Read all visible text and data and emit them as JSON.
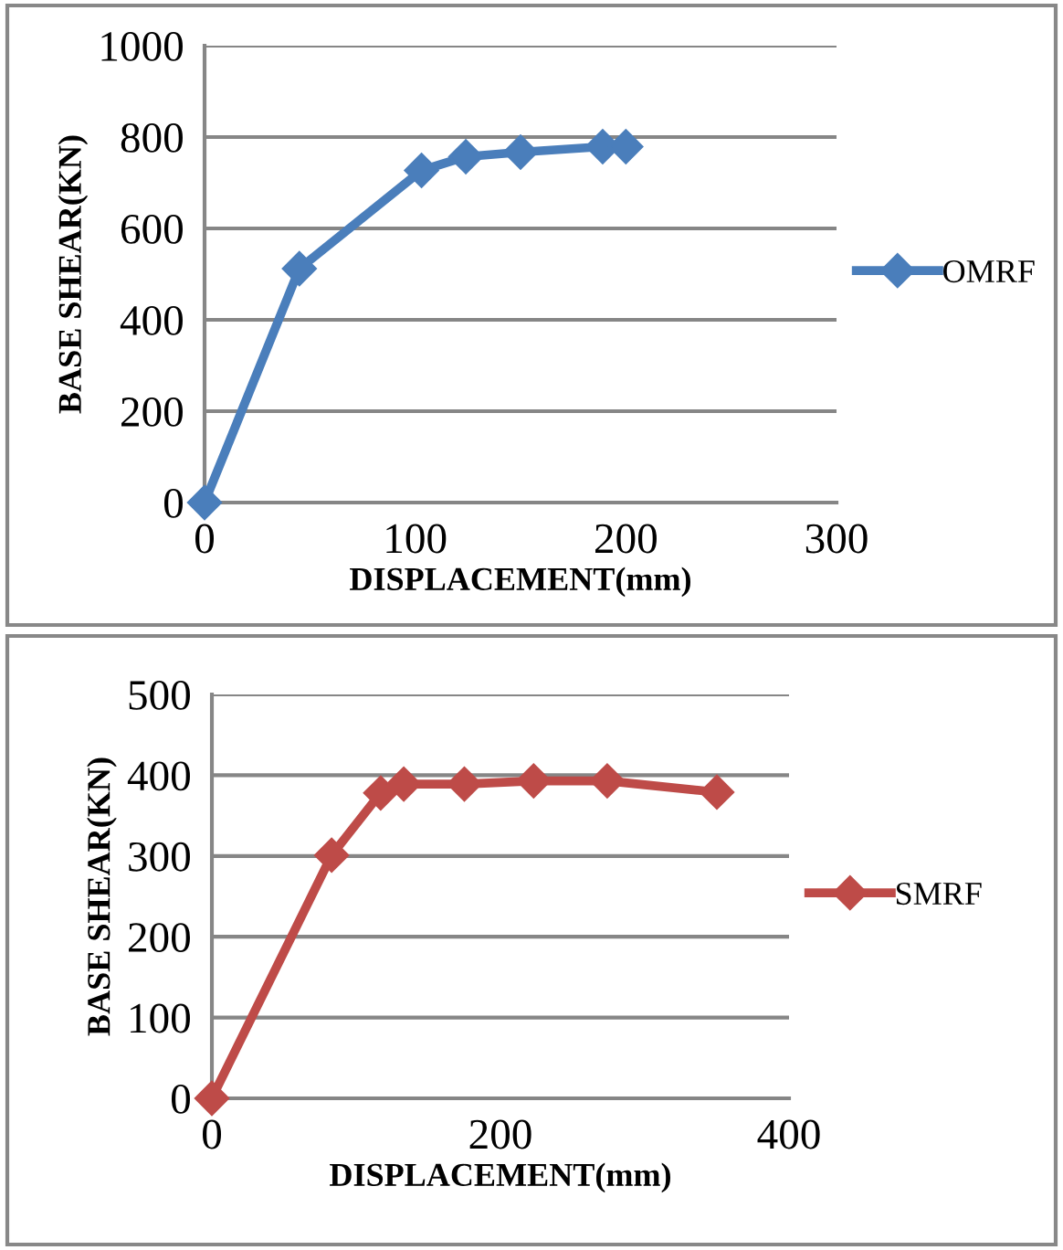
{
  "chart_data": [
    {
      "type": "line",
      "xlabel": "DISPLACEMENT(mm)",
      "ylabel": "BASE SHEAR(KN)",
      "marker": "diamond",
      "line_style": "solid",
      "grid": "y",
      "legend": "right",
      "xlim": [
        0,
        300
      ],
      "xticks": [
        0,
        100,
        200,
        300
      ],
      "ylim": [
        0,
        1000
      ],
      "yticks": [
        0,
        200,
        400,
        600,
        800,
        1000
      ],
      "series": [
        {
          "name": "OMRF",
          "color": "#4a7ebb",
          "x": [
            0,
            45,
            103,
            124,
            150,
            189,
            200
          ],
          "values": [
            0,
            512,
            727,
            757,
            767,
            779,
            779
          ]
        }
      ]
    },
    {
      "type": "line",
      "xlabel": "DISPLACEMENT(mm)",
      "ylabel": "BASE SHEAR(KN)",
      "marker": "diamond",
      "line_style": "solid",
      "grid": "y",
      "legend": "right",
      "xlim": [
        0,
        400
      ],
      "xticks": [
        0,
        200,
        400
      ],
      "ylim": [
        0,
        500
      ],
      "yticks": [
        0,
        100,
        200,
        300,
        400,
        500
      ],
      "series": [
        {
          "name": "SMRF",
          "color": "#be4b48",
          "x": [
            0,
            83,
            117,
            133,
            175,
            223,
            274,
            350
          ],
          "values": [
            0,
            301,
            378,
            389,
            389,
            393,
            393,
            379
          ]
        }
      ]
    }
  ]
}
